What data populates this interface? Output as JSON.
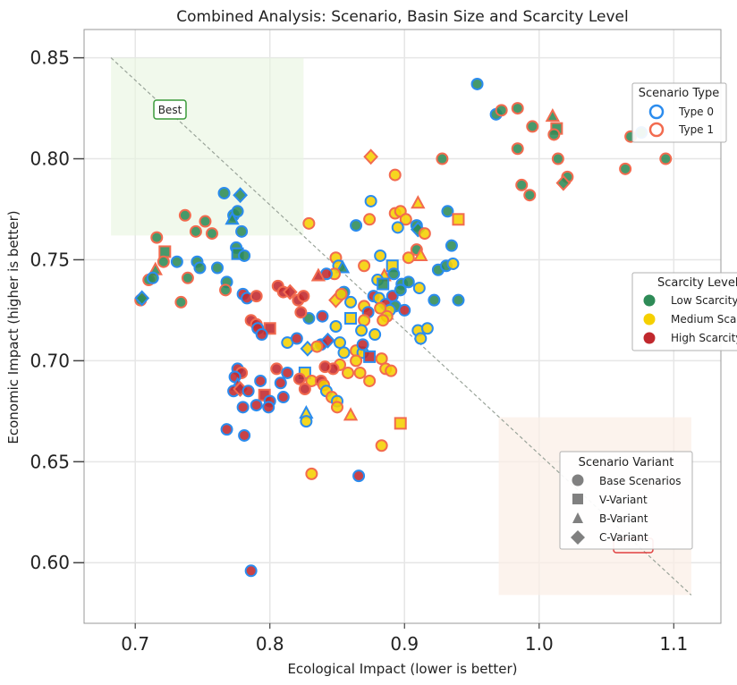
{
  "chart_data": {
    "type": "scatter",
    "title": "Combined Analysis: Scenario, Basin Size and Scarcity Level",
    "xlabel": "Ecological Impact (lower is better)",
    "ylabel": "Economic Impact (higher is better)",
    "xlim": [
      0.662,
      1.135
    ],
    "ylim": [
      0.57,
      0.864
    ],
    "xticks": [
      "0.7",
      "0.8",
      "0.9",
      "1.0",
      "1.1"
    ],
    "xtick_values": [
      0.7,
      0.8,
      0.9,
      1.0,
      1.1
    ],
    "yticks": [
      "0.60",
      "0.65",
      "0.70",
      "0.75",
      "0.80",
      "0.85"
    ],
    "ytick_values": [
      0.6,
      0.65,
      0.7,
      0.75,
      0.8,
      0.85
    ],
    "grid": true,
    "colors": {
      "fill_low": "#2e8b57",
      "fill_medium": "#f5d000",
      "fill_high": "#c0282d",
      "edge_type0": "#2b8cee",
      "edge_type1": "#f26b4f",
      "best_edge": "#3a9a3a",
      "worst_edge": "#e04040",
      "best_region": "#e8f5e0",
      "worst_region": "#fbeee6"
    },
    "annotations": {
      "best_label": "Best",
      "best_region": {
        "x": [
          0.682,
          0.825
        ],
        "y": [
          0.762,
          0.85
        ]
      },
      "worst_region": {
        "x": [
          0.97,
          1.113
        ],
        "y": [
          0.584,
          0.672
        ]
      },
      "diagonal": {
        "x": [
          0.682,
          1.113
        ],
        "y": [
          0.85,
          0.584
        ]
      }
    },
    "legends": {
      "scenario_type": {
        "title": "Scenario Type",
        "position": "upper-right",
        "items": [
          {
            "label": "Type 0",
            "edge": "type0"
          },
          {
            "label": "Type 1",
            "edge": "type1"
          }
        ]
      },
      "scarcity_level": {
        "title": "Scarcity Level",
        "position": "center-right",
        "items": [
          {
            "label": "Low Scarcity",
            "fill": "low"
          },
          {
            "label": "Medium Scarcity",
            "fill": "medium"
          },
          {
            "label": "High Scarcity",
            "fill": "high"
          }
        ]
      },
      "scenario_variant": {
        "title": "Scenario Variant",
        "position": "lower-right",
        "items": [
          {
            "label": "Base Scenarios",
            "marker": "circle"
          },
          {
            "label": "V-Variant",
            "marker": "square"
          },
          {
            "label": "B-Variant",
            "marker": "triangle"
          },
          {
            "label": "C-Variant",
            "marker": "diamond"
          }
        ]
      }
    },
    "points": [
      [
        0.954,
        0.837,
        "L",
        0,
        "o"
      ],
      [
        0.968,
        0.822,
        "L",
        0,
        "o"
      ],
      [
        0.972,
        0.824,
        "L",
        1,
        "o"
      ],
      [
        0.984,
        0.825,
        "L",
        1,
        "o"
      ],
      [
        0.995,
        0.816,
        "L",
        1,
        "o"
      ],
      [
        1.01,
        0.821,
        "L",
        1,
        "^"
      ],
      [
        1.013,
        0.815,
        "L",
        1,
        "s"
      ],
      [
        1.011,
        0.812,
        "L",
        1,
        "o"
      ],
      [
        1.068,
        0.811,
        "L",
        1,
        "o"
      ],
      [
        1.076,
        0.813,
        "L",
        0,
        "o"
      ],
      [
        0.984,
        0.805,
        "L",
        1,
        "o"
      ],
      [
        1.014,
        0.8,
        "L",
        1,
        "o"
      ],
      [
        1.094,
        0.8,
        "L",
        1,
        "o"
      ],
      [
        1.064,
        0.795,
        "L",
        1,
        "o"
      ],
      [
        1.021,
        0.791,
        "L",
        1,
        "o"
      ],
      [
        1.018,
        0.788,
        "L",
        1,
        "D"
      ],
      [
        0.987,
        0.787,
        "L",
        1,
        "o"
      ],
      [
        0.993,
        0.782,
        "L",
        1,
        "o"
      ],
      [
        0.928,
        0.8,
        "L",
        1,
        "o"
      ],
      [
        0.766,
        0.783,
        "L",
        0,
        "o"
      ],
      [
        0.778,
        0.782,
        "L",
        0,
        "D"
      ],
      [
        0.773,
        0.772,
        "L",
        0,
        "o"
      ],
      [
        0.772,
        0.77,
        "L",
        0,
        "^"
      ],
      [
        0.776,
        0.774,
        "L",
        0,
        "o"
      ],
      [
        0.779,
        0.764,
        "L",
        0,
        "o"
      ],
      [
        0.757,
        0.763,
        "L",
        1,
        "o"
      ],
      [
        0.745,
        0.764,
        "L",
        1,
        "o"
      ],
      [
        0.752,
        0.769,
        "L",
        1,
        "o"
      ],
      [
        0.737,
        0.772,
        "L",
        1,
        "o"
      ],
      [
        0.716,
        0.761,
        "L",
        1,
        "o"
      ],
      [
        0.775,
        0.756,
        "L",
        0,
        "o"
      ],
      [
        0.776,
        0.753,
        "L",
        0,
        "s"
      ],
      [
        0.781,
        0.752,
        "L",
        0,
        "o"
      ],
      [
        0.722,
        0.754,
        "L",
        1,
        "s"
      ],
      [
        0.721,
        0.749,
        "L",
        1,
        "o"
      ],
      [
        0.731,
        0.749,
        "L",
        0,
        "o"
      ],
      [
        0.746,
        0.749,
        "L",
        0,
        "o"
      ],
      [
        0.748,
        0.746,
        "L",
        0,
        "o"
      ],
      [
        0.761,
        0.746,
        "L",
        0,
        "o"
      ],
      [
        0.715,
        0.745,
        "L",
        1,
        "^"
      ],
      [
        0.739,
        0.741,
        "L",
        1,
        "o"
      ],
      [
        0.71,
        0.74,
        "L",
        1,
        "o"
      ],
      [
        0.713,
        0.741,
        "L",
        0,
        "o"
      ],
      [
        0.768,
        0.739,
        "L",
        0,
        "o"
      ],
      [
        0.767,
        0.735,
        "L",
        1,
        "o"
      ],
      [
        0.704,
        0.73,
        "L",
        1,
        "o"
      ],
      [
        0.705,
        0.731,
        "L",
        0,
        "D"
      ],
      [
        0.734,
        0.729,
        "L",
        1,
        "o"
      ],
      [
        0.875,
        0.801,
        "M",
        1,
        "D"
      ],
      [
        0.893,
        0.792,
        "M",
        1,
        "o"
      ],
      [
        0.875,
        0.779,
        "M",
        0,
        "o"
      ],
      [
        0.864,
        0.767,
        "L",
        0,
        "o"
      ],
      [
        0.893,
        0.773,
        "M",
        1,
        "o"
      ],
      [
        0.897,
        0.774,
        "M",
        1,
        "o"
      ],
      [
        0.901,
        0.77,
        "M",
        1,
        "o"
      ],
      [
        0.91,
        0.778,
        "M",
        1,
        "^"
      ],
      [
        0.932,
        0.774,
        "L",
        0,
        "o"
      ],
      [
        0.94,
        0.77,
        "M",
        1,
        "s"
      ],
      [
        0.874,
        0.77,
        "M",
        1,
        "o"
      ],
      [
        0.909,
        0.767,
        "L",
        0,
        "o"
      ],
      [
        0.91,
        0.765,
        "L",
        0,
        "D"
      ],
      [
        0.915,
        0.763,
        "M",
        1,
        "o"
      ],
      [
        0.829,
        0.768,
        "M",
        1,
        "o"
      ],
      [
        0.895,
        0.766,
        "M",
        0,
        "o"
      ],
      [
        0.935,
        0.757,
        "L",
        0,
        "o"
      ],
      [
        0.909,
        0.755,
        "L",
        1,
        "o"
      ],
      [
        0.912,
        0.752,
        "M",
        1,
        "^"
      ],
      [
        0.903,
        0.751,
        "M",
        1,
        "o"
      ],
      [
        0.882,
        0.752,
        "M",
        0,
        "o"
      ],
      [
        0.849,
        0.751,
        "M",
        1,
        "o"
      ],
      [
        0.851,
        0.747,
        "M",
        0,
        "o"
      ],
      [
        0.854,
        0.746,
        "L",
        0,
        "^"
      ],
      [
        0.87,
        0.747,
        "M",
        1,
        "o"
      ],
      [
        0.891,
        0.747,
        "M",
        0,
        "s"
      ],
      [
        0.925,
        0.745,
        "L",
        0,
        "o"
      ],
      [
        0.931,
        0.747,
        "L",
        0,
        "o"
      ],
      [
        0.936,
        0.748,
        "M",
        0,
        "o"
      ],
      [
        0.848,
        0.743,
        "M",
        1,
        "o"
      ],
      [
        0.842,
        0.743,
        "H",
        0,
        "o"
      ],
      [
        0.885,
        0.742,
        "M",
        1,
        "^"
      ],
      [
        0.892,
        0.743,
        "L",
        0,
        "o"
      ],
      [
        0.88,
        0.74,
        "M",
        0,
        "o"
      ],
      [
        0.884,
        0.738,
        "L",
        0,
        "s"
      ],
      [
        0.898,
        0.738,
        "L",
        0,
        "o"
      ],
      [
        0.903,
        0.739,
        "L",
        0,
        "o"
      ],
      [
        0.911,
        0.736,
        "M",
        0,
        "o"
      ],
      [
        0.94,
        0.73,
        "L",
        0,
        "o"
      ],
      [
        0.922,
        0.73,
        "L",
        0,
        "o"
      ],
      [
        0.855,
        0.734,
        "L",
        0,
        "o"
      ],
      [
        0.877,
        0.732,
        "H",
        0,
        "o"
      ],
      [
        0.881,
        0.731,
        "M",
        0,
        "o"
      ],
      [
        0.891,
        0.732,
        "H",
        0,
        "o"
      ],
      [
        0.886,
        0.728,
        "H",
        0,
        "o"
      ],
      [
        0.893,
        0.727,
        "L",
        0,
        "o"
      ],
      [
        0.889,
        0.725,
        "M",
        0,
        "o"
      ],
      [
        0.9,
        0.725,
        "H",
        0,
        "o"
      ],
      [
        0.849,
        0.73,
        "M",
        1,
        "D"
      ],
      [
        0.853,
        0.733,
        "M",
        1,
        "o"
      ],
      [
        0.86,
        0.729,
        "M",
        0,
        "o"
      ],
      [
        0.87,
        0.727,
        "M",
        1,
        "o"
      ],
      [
        0.873,
        0.724,
        "H",
        0,
        "o"
      ],
      [
        0.882,
        0.726,
        "M",
        1,
        "o"
      ],
      [
        0.887,
        0.722,
        "M",
        1,
        "o"
      ],
      [
        0.884,
        0.72,
        "M",
        1,
        "o"
      ],
      [
        0.87,
        0.72,
        "M",
        1,
        "o"
      ],
      [
        0.86,
        0.721,
        "M",
        0,
        "s"
      ],
      [
        0.839,
        0.722,
        "H",
        0,
        "o"
      ],
      [
        0.829,
        0.721,
        "L",
        0,
        "o"
      ],
      [
        0.849,
        0.717,
        "M",
        0,
        "o"
      ],
      [
        0.868,
        0.715,
        "M",
        0,
        "o"
      ],
      [
        0.878,
        0.713,
        "M",
        0,
        "o"
      ],
      [
        0.91,
        0.715,
        "M",
        0,
        "o"
      ],
      [
        0.917,
        0.716,
        "M",
        0,
        "o"
      ],
      [
        0.912,
        0.711,
        "M",
        0,
        "o"
      ],
      [
        0.813,
        0.709,
        "M",
        0,
        "o"
      ],
      [
        0.838,
        0.708,
        "H",
        0,
        "o"
      ],
      [
        0.843,
        0.71,
        "H",
        0,
        "D"
      ],
      [
        0.828,
        0.706,
        "M",
        0,
        "D"
      ],
      [
        0.835,
        0.707,
        "M",
        1,
        "o"
      ],
      [
        0.852,
        0.709,
        "M",
        0,
        "o"
      ],
      [
        0.864,
        0.705,
        "M",
        1,
        "o"
      ],
      [
        0.869,
        0.704,
        "M",
        0,
        "o"
      ],
      [
        0.869,
        0.708,
        "H",
        0,
        "o"
      ],
      [
        0.874,
        0.702,
        "H",
        0,
        "s"
      ],
      [
        0.883,
        0.701,
        "M",
        1,
        "o"
      ],
      [
        0.855,
        0.704,
        "M",
        0,
        "o"
      ],
      [
        0.864,
        0.7,
        "M",
        1,
        "o"
      ],
      [
        0.852,
        0.698,
        "M",
        1,
        "o"
      ],
      [
        0.858,
        0.694,
        "M",
        1,
        "o"
      ],
      [
        0.867,
        0.694,
        "M",
        1,
        "o"
      ],
      [
        0.847,
        0.696,
        "H",
        1,
        "o"
      ],
      [
        0.841,
        0.697,
        "H",
        1,
        "o"
      ],
      [
        0.886,
        0.696,
        "M",
        1,
        "o"
      ],
      [
        0.89,
        0.695,
        "M",
        1,
        "o"
      ],
      [
        0.826,
        0.694,
        "M",
        0,
        "s"
      ],
      [
        0.831,
        0.69,
        "M",
        1,
        "o"
      ],
      [
        0.805,
        0.696,
        "H",
        1,
        "o"
      ],
      [
        0.838,
        0.69,
        "H",
        1,
        "o"
      ],
      [
        0.874,
        0.69,
        "M",
        1,
        "o"
      ],
      [
        0.84,
        0.688,
        "M",
        1,
        "o"
      ],
      [
        0.842,
        0.685,
        "M",
        0,
        "o"
      ],
      [
        0.846,
        0.682,
        "M",
        1,
        "o"
      ],
      [
        0.85,
        0.68,
        "M",
        0,
        "o"
      ],
      [
        0.85,
        0.677,
        "M",
        1,
        "o"
      ],
      [
        0.86,
        0.673,
        "M",
        1,
        "^"
      ],
      [
        0.897,
        0.669,
        "M",
        1,
        "s"
      ],
      [
        0.883,
        0.658,
        "M",
        1,
        "o"
      ],
      [
        0.831,
        0.644,
        "M",
        1,
        "o"
      ],
      [
        0.866,
        0.643,
        "H",
        0,
        "o"
      ],
      [
        0.836,
        0.742,
        "H",
        1,
        "^"
      ],
      [
        0.806,
        0.737,
        "H",
        1,
        "o"
      ],
      [
        0.81,
        0.734,
        "H",
        1,
        "o"
      ],
      [
        0.815,
        0.734,
        "H",
        1,
        "D"
      ],
      [
        0.821,
        0.73,
        "H",
        1,
        "o"
      ],
      [
        0.825,
        0.732,
        "H",
        1,
        "o"
      ],
      [
        0.78,
        0.733,
        "H",
        0,
        "o"
      ],
      [
        0.783,
        0.731,
        "H",
        0,
        "o"
      ],
      [
        0.79,
        0.732,
        "H",
        1,
        "o"
      ],
      [
        0.823,
        0.724,
        "H",
        1,
        "o"
      ],
      [
        0.786,
        0.72,
        "H",
        1,
        "o"
      ],
      [
        0.79,
        0.718,
        "H",
        1,
        "o"
      ],
      [
        0.8,
        0.716,
        "H",
        1,
        "s"
      ],
      [
        0.791,
        0.716,
        "H",
        0,
        "o"
      ],
      [
        0.794,
        0.713,
        "H",
        0,
        "o"
      ],
      [
        0.82,
        0.711,
        "H",
        0,
        "o"
      ],
      [
        0.776,
        0.696,
        "H",
        0,
        "o"
      ],
      [
        0.779,
        0.694,
        "H",
        1,
        "o"
      ],
      [
        0.774,
        0.692,
        "H",
        0,
        "o"
      ],
      [
        0.776,
        0.688,
        "H",
        0,
        "^"
      ],
      [
        0.773,
        0.685,
        "H",
        0,
        "o"
      ],
      [
        0.778,
        0.686,
        "H",
        1,
        "D"
      ],
      [
        0.784,
        0.685,
        "H",
        0,
        "o"
      ],
      [
        0.793,
        0.69,
        "H",
        0,
        "o"
      ],
      [
        0.796,
        0.683,
        "H",
        1,
        "s"
      ],
      [
        0.808,
        0.689,
        "H",
        0,
        "o"
      ],
      [
        0.81,
        0.682,
        "H",
        0,
        "o"
      ],
      [
        0.8,
        0.68,
        "H",
        0,
        "o"
      ],
      [
        0.79,
        0.678,
        "H",
        0,
        "o"
      ],
      [
        0.78,
        0.677,
        "H",
        0,
        "o"
      ],
      [
        0.799,
        0.677,
        "H",
        0,
        "o"
      ],
      [
        0.768,
        0.666,
        "H",
        0,
        "o"
      ],
      [
        0.781,
        0.663,
        "H",
        0,
        "o"
      ],
      [
        0.822,
        0.691,
        "H",
        1,
        "o"
      ],
      [
        0.826,
        0.686,
        "H",
        1,
        "o"
      ],
      [
        0.813,
        0.694,
        "H",
        0,
        "o"
      ],
      [
        0.786,
        0.596,
        "H",
        0,
        "o"
      ],
      [
        0.827,
        0.674,
        "M",
        0,
        "^"
      ],
      [
        0.827,
        0.67,
        "M",
        0,
        "o"
      ],
      [
        0.897,
        0.735,
        "L",
        0,
        "o"
      ]
    ]
  }
}
